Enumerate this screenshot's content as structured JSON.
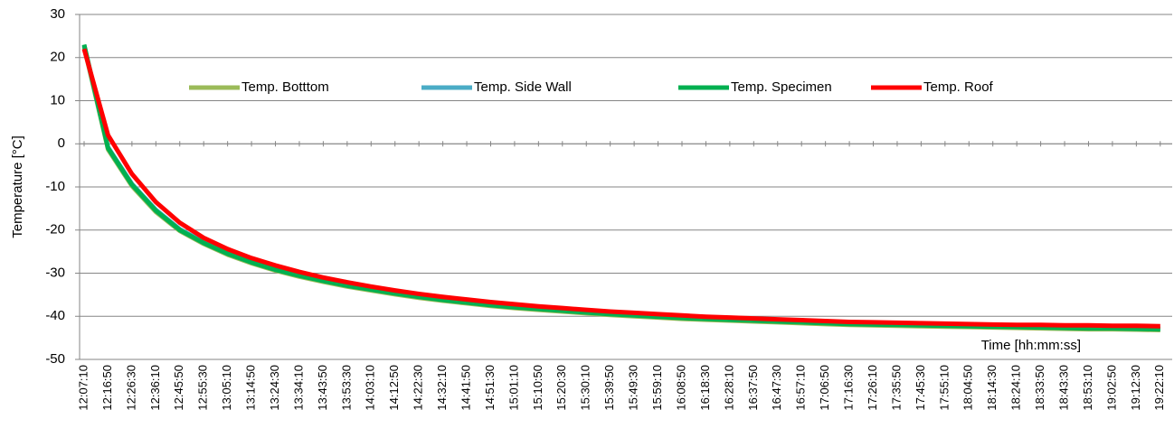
{
  "chart_data": {
    "type": "line",
    "ylabel": "Temperature [°C]",
    "xlabel": "Time [hh:mm:ss]",
    "categories": [
      "12:07:10",
      "12:16:50",
      "12:26:30",
      "12:36:10",
      "12:45:50",
      "12:55:30",
      "13:05:10",
      "13:14:50",
      "13:24:30",
      "13:34:10",
      "13:43:50",
      "13:53:30",
      "14:03:10",
      "14:12:50",
      "14:22:30",
      "14:32:10",
      "14:41:50",
      "14:51:30",
      "15:01:10",
      "15:10:50",
      "15:20:30",
      "15:30:10",
      "15:39:50",
      "15:49:30",
      "15:59:10",
      "16:08:50",
      "16:18:30",
      "16:28:10",
      "16:37:50",
      "16:47:30",
      "16:57:10",
      "17:06:50",
      "17:16:30",
      "17:26:10",
      "17:35:50",
      "17:45:30",
      "17:55:10",
      "18:04:50",
      "18:14:30",
      "18:24:10",
      "18:33:50",
      "18:43:30",
      "18:53:10",
      "19:02:50",
      "19:12:30",
      "19:22:10"
    ],
    "series": [
      {
        "name": "Temp. Botttom",
        "color": "#9bbb59",
        "values": [
          22.5,
          -1.3,
          -9.8,
          -15.8,
          -20.2,
          -23.2,
          -25.7,
          -27.7,
          -29.4,
          -30.8,
          -32,
          -33.1,
          -34,
          -34.9,
          -35.7,
          -36.4,
          -37,
          -37.6,
          -38.1,
          -38.5,
          -38.9,
          -39.3,
          -39.7,
          -40,
          -40.3,
          -40.6,
          -40.8,
          -41,
          -41.2,
          -41.4,
          -41.6,
          -41.8,
          -42,
          -42.1,
          -42.2,
          -42.3,
          -42.4,
          -42.5,
          -42.6,
          -42.7,
          -42.8,
          -42.9,
          -43,
          -43,
          -43.1,
          -43.2
        ]
      },
      {
        "name": "Temp. Side Wall",
        "color": "#4bacc6",
        "values": [
          22.8,
          -0.8,
          -9.3,
          -15.3,
          -19.8,
          -22.8,
          -25.3,
          -27.3,
          -29,
          -30.4,
          -31.6,
          -32.7,
          -33.6,
          -34.5,
          -35.3,
          -36,
          -36.6,
          -37.2,
          -37.7,
          -38.1,
          -38.5,
          -38.9,
          -39.3,
          -39.6,
          -39.9,
          -40.2,
          -40.4,
          -40.6,
          -40.8,
          -41,
          -41.2,
          -41.4,
          -41.6,
          -41.7,
          -41.8,
          -41.9,
          -42,
          -42.1,
          -42.2,
          -42.3,
          -42.4,
          -42.5,
          -42.6,
          -42.6,
          -42.7,
          -42.8
        ]
      },
      {
        "name": "Temp. Specimen",
        "color": "#00b050",
        "values": [
          23,
          -1,
          -9.5,
          -15.5,
          -20,
          -23,
          -25.5,
          -27.5,
          -29.2,
          -30.6,
          -31.8,
          -32.9,
          -33.8,
          -34.7,
          -35.5,
          -36.2,
          -36.8,
          -37.4,
          -37.9,
          -38.3,
          -38.7,
          -39.1,
          -39.5,
          -39.8,
          -40.1,
          -40.4,
          -40.6,
          -40.8,
          -41,
          -41.2,
          -41.4,
          -41.6,
          -41.8,
          -41.9,
          -42,
          -42.1,
          -42.2,
          -42.3,
          -42.4,
          -42.5,
          -42.6,
          -42.7,
          -42.8,
          -42.8,
          -42.9,
          -43
        ]
      },
      {
        "name": "Temp. Roof",
        "color": "#ff0000",
        "values": [
          22,
          2,
          -7,
          -13.5,
          -18.3,
          -21.8,
          -24.4,
          -26.5,
          -28.2,
          -29.7,
          -31,
          -32.1,
          -33.1,
          -34,
          -34.8,
          -35.5,
          -36.1,
          -36.7,
          -37.2,
          -37.7,
          -38.1,
          -38.5,
          -38.9,
          -39.2,
          -39.5,
          -39.8,
          -40.1,
          -40.3,
          -40.5,
          -40.7,
          -40.9,
          -41.1,
          -41.3,
          -41.4,
          -41.5,
          -41.6,
          -41.7,
          -41.8,
          -41.9,
          -42,
          -42,
          -42.1,
          -42.1,
          -42.2,
          -42.2,
          -42.3
        ]
      }
    ],
    "ylim": [
      -50,
      30
    ],
    "yticks": [
      -50,
      -40,
      -30,
      -20,
      -10,
      0,
      10,
      20,
      30
    ],
    "grid": true
  }
}
